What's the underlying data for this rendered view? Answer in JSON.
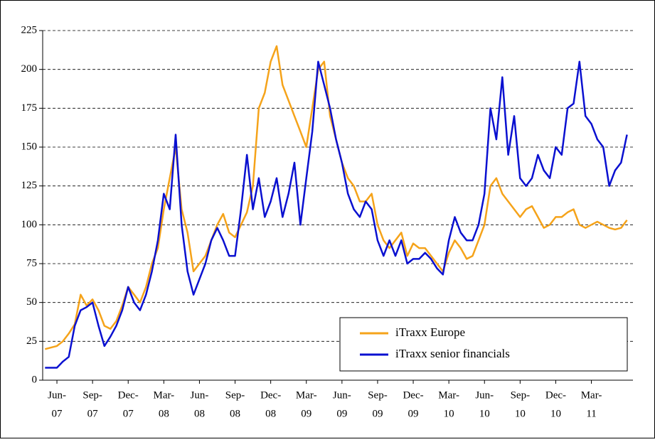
{
  "chart_data": {
    "type": "line",
    "x": [
      -1,
      -0.5,
      0,
      0.5,
      1,
      1.5,
      2,
      2.5,
      3,
      3.5,
      4,
      4.5,
      5,
      5.5,
      6,
      6.5,
      7,
      7.5,
      8,
      8.5,
      9,
      9.5,
      10,
      10.5,
      11,
      11.5,
      12,
      12.5,
      13,
      13.5,
      14,
      14.5,
      15,
      15.5,
      16,
      16.5,
      17,
      17.5,
      18,
      18.5,
      19,
      19.5,
      20,
      20.5,
      21,
      21.5,
      22,
      22.5,
      23,
      23.5,
      24,
      24.5,
      25,
      25.5,
      26,
      26.5,
      27,
      27.5,
      28,
      28.5,
      29,
      29.5,
      30,
      30.5,
      31,
      31.5,
      32,
      32.5,
      33,
      33.5,
      34,
      34.5,
      35,
      35.5,
      36,
      36.5,
      37,
      37.5,
      38,
      38.5,
      39,
      39.5,
      40,
      40.5,
      41,
      41.5,
      42,
      42.5,
      43,
      43.5,
      44,
      44.5,
      45,
      45.5,
      46,
      46.5,
      47,
      47.5,
      48
    ],
    "series": [
      {
        "name": "iTraxx Europe",
        "color": "#f5a31a",
        "values": [
          20,
          21,
          22,
          25,
          30,
          36,
          55,
          48,
          52,
          45,
          35,
          33,
          38,
          48,
          60,
          55,
          50,
          60,
          75,
          85,
          110,
          130,
          150,
          110,
          95,
          70,
          75,
          80,
          90,
          100,
          107,
          95,
          92,
          100,
          108,
          125,
          175,
          185,
          205,
          215,
          190,
          180,
          170,
          160,
          150,
          175,
          200,
          205,
          170,
          155,
          140,
          130,
          125,
          115,
          115,
          120,
          100,
          90,
          85,
          90,
          95,
          80,
          88,
          85,
          85,
          80,
          75,
          70,
          82,
          90,
          85,
          78,
          80,
          90,
          100,
          125,
          130,
          120,
          115,
          110,
          105,
          110,
          112,
          105,
          98,
          100,
          105,
          105,
          108,
          110,
          100,
          98,
          100,
          102,
          100,
          98,
          97,
          98,
          103
        ]
      },
      {
        "name": "iTraxx senior financials",
        "color": "#0a10d0",
        "values": [
          8,
          8,
          8,
          12,
          15,
          35,
          45,
          47,
          50,
          35,
          22,
          28,
          35,
          45,
          60,
          50,
          45,
          55,
          70,
          90,
          120,
          110,
          158,
          100,
          70,
          55,
          65,
          75,
          90,
          98,
          90,
          80,
          80,
          110,
          145,
          110,
          130,
          105,
          115,
          130,
          105,
          120,
          140,
          100,
          130,
          160,
          205,
          190,
          175,
          155,
          140,
          120,
          110,
          105,
          115,
          110,
          90,
          80,
          90,
          80,
          90,
          75,
          78,
          78,
          82,
          78,
          72,
          68,
          90,
          105,
          95,
          90,
          90,
          100,
          120,
          175,
          155,
          195,
          145,
          170,
          130,
          125,
          130,
          145,
          135,
          130,
          150,
          145,
          175,
          178,
          205,
          170,
          165,
          155,
          150,
          125,
          135,
          140,
          158
        ]
      }
    ],
    "xlim": [
      -1.2,
      48.5
    ],
    "xticks": [
      {
        "value": 0,
        "label": [
          "Jun-",
          "07"
        ]
      },
      {
        "value": 3,
        "label": [
          "Sep-",
          "07"
        ]
      },
      {
        "value": 6,
        "label": [
          "Dec-",
          "07"
        ]
      },
      {
        "value": 9,
        "label": [
          "Mar-",
          "08"
        ]
      },
      {
        "value": 12,
        "label": [
          "Jun-",
          "08"
        ]
      },
      {
        "value": 15,
        "label": [
          "Sep-",
          "08"
        ]
      },
      {
        "value": 18,
        "label": [
          "Dec-",
          "08"
        ]
      },
      {
        "value": 21,
        "label": [
          "Mar-",
          "09"
        ]
      },
      {
        "value": 24,
        "label": [
          "Jun-",
          "09"
        ]
      },
      {
        "value": 27,
        "label": [
          "Sep-",
          "09"
        ]
      },
      {
        "value": 30,
        "label": [
          "Dec-",
          "09"
        ]
      },
      {
        "value": 33,
        "label": [
          "Mar-",
          "10"
        ]
      },
      {
        "value": 36,
        "label": [
          "Jun-",
          "10"
        ]
      },
      {
        "value": 39,
        "label": [
          "Sep-",
          "10"
        ]
      },
      {
        "value": 42,
        "label": [
          "Dec-",
          "10"
        ]
      },
      {
        "value": 45,
        "label": [
          "Mar-",
          "11"
        ]
      }
    ],
    "ylim": [
      0,
      225
    ],
    "yticks": [
      0,
      25,
      50,
      75,
      100,
      125,
      150,
      175,
      200,
      225
    ],
    "grid": true,
    "legend": "bottom-right"
  }
}
